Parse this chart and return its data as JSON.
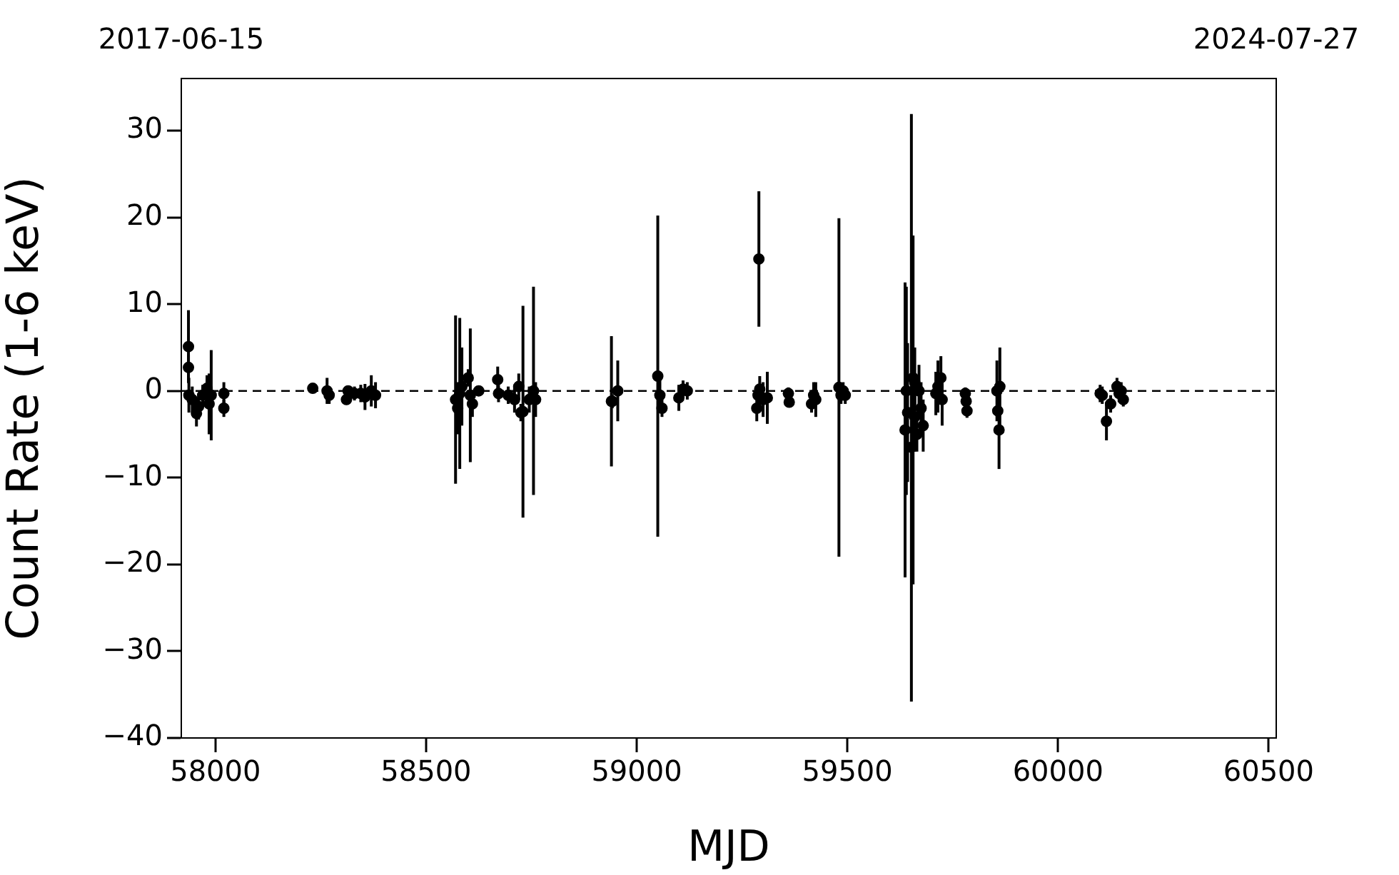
{
  "chart_data": {
    "type": "scatter",
    "xlabel": "MJD",
    "ylabel": "Count Rate (1-6 keV)",
    "xlim": [
      57919,
      60518
    ],
    "xticks": [
      58000,
      58500,
      59000,
      59500,
      60000,
      60500
    ],
    "x2lim": [
      "2017-06-15",
      "2024-07-27"
    ],
    "x2ticks": [
      "2017-06-15",
      "2024-07-27"
    ],
    "ylim": [
      -40,
      36
    ],
    "yticks": [
      {
        "value": -40,
        "label": "−40"
      },
      {
        "value": -30,
        "label": "−30"
      },
      {
        "value": -20,
        "label": "−20"
      },
      {
        "value": -10,
        "label": "−10"
      },
      0,
      10,
      20,
      30
    ],
    "grid": false,
    "legend": false,
    "marker": "circle",
    "ref_lines": [
      {
        "axis": "y",
        "value": 0,
        "color": "#000000",
        "line_style": "dashed"
      }
    ],
    "series": [
      {
        "color": "#000000",
        "x": [
          57936,
          57936,
          57937,
          57945,
          57955,
          57960,
          57970,
          57980,
          57985,
          57990,
          58020,
          58020,
          58231,
          58265,
          58270,
          58311,
          58315,
          58330,
          58345,
          58355,
          58370,
          58380,
          58570,
          58575,
          58580,
          58585,
          58600,
          58605,
          58610,
          58625,
          58670,
          58672,
          58695,
          58710,
          58720,
          58725,
          58730,
          58745,
          58755,
          58760,
          58940,
          58942,
          58955,
          59050,
          59055,
          59060,
          59100,
          59110,
          59120,
          59290,
          59285,
          59288,
          59292,
          59300,
          59310,
          59360,
          59362,
          59415,
          59420,
          59425,
          59480,
          59485,
          59490,
          59495,
          59637,
          59640,
          59643,
          59652,
          59656,
          59660,
          59665,
          59670,
          59675,
          59680,
          59660,
          59710,
          59715,
          59722,
          59725,
          59780,
          59782,
          59784,
          59855,
          59857,
          59860,
          59862,
          60100,
          60105,
          60115,
          60125,
          60140,
          60145,
          60150,
          60155
        ],
        "values": [
          5.1,
          2.7,
          -0.5,
          -1.0,
          -2.6,
          -1.8,
          -0.5,
          0.3,
          -1.5,
          -0.5,
          -0.3,
          -2.0,
          0.3,
          0.0,
          -0.5,
          -1.0,
          0.0,
          -0.3,
          -0.3,
          -0.7,
          0.0,
          -0.5,
          -1.0,
          -2.0,
          -0.3,
          0.5,
          1.5,
          -0.5,
          -1.5,
          0.0,
          1.3,
          -0.3,
          -0.5,
          -1.0,
          0.5,
          -2.5,
          -2.4,
          -1.0,
          0.0,
          -1.0,
          -1.2,
          -1.2,
          0.0,
          1.7,
          -0.5,
          -2.0,
          -0.8,
          0.2,
          0.0,
          15.2,
          -2.0,
          -0.5,
          0.2,
          -1.0,
          -0.8,
          -0.3,
          -1.3,
          -1.5,
          -0.5,
          -1.0,
          0.4,
          -0.5,
          0.0,
          -0.5,
          -4.5,
          0.0,
          -2.5,
          -6.5,
          1.5,
          -3.0,
          -5.0,
          0.0,
          -2.0,
          -4.0,
          1.0,
          -0.3,
          0.5,
          1.5,
          -1.0,
          -0.3,
          -1.2,
          -2.3,
          0.0,
          -2.3,
          -4.5,
          0.5,
          -0.3,
          -0.5,
          -3.5,
          -1.5,
          0.5,
          -0.3,
          0.0,
          -1.0
        ],
        "errors": [
          4.2,
          1.5,
          2.0,
          1.5,
          1.5,
          1.5,
          1.2,
          1.5,
          3.5,
          5.2,
          1.3,
          1.0,
          0.4,
          1.5,
          1.0,
          0.6,
          0.6,
          0.8,
          1.0,
          1.5,
          1.8,
          1.5,
          9.7,
          3.0,
          8.7,
          4.5,
          1.0,
          7.7,
          1.5,
          0.5,
          1.5,
          1.0,
          1.0,
          1.5,
          1.5,
          1.0,
          12.2,
          1.5,
          12.0,
          2.0,
          7.5,
          0.8,
          3.5,
          18.5,
          2.0,
          1.0,
          1.5,
          1.0,
          1.0,
          7.8,
          1.5,
          1.0,
          1.5,
          2.0,
          3.0,
          0.7,
          0.6,
          1.0,
          1.5,
          2.0,
          19.5,
          1.0,
          1.0,
          1.0,
          17.0,
          12.0,
          8.0,
          [
            -35.8,
            31.9
          ],
          [
            -22.3,
            17.9
          ],
          4.0,
          2.0,
          3.0,
          3.0,
          3.0,
          4.0,
          2.5,
          3.0,
          2.5,
          3.0,
          0.7,
          0.6,
          0.8,
          3.5,
          1.0,
          4.5,
          4.5,
          1.0,
          1.0,
          2.2,
          1.0,
          1.0,
          1.0,
          1.0,
          0.8
        ]
      }
    ]
  }
}
